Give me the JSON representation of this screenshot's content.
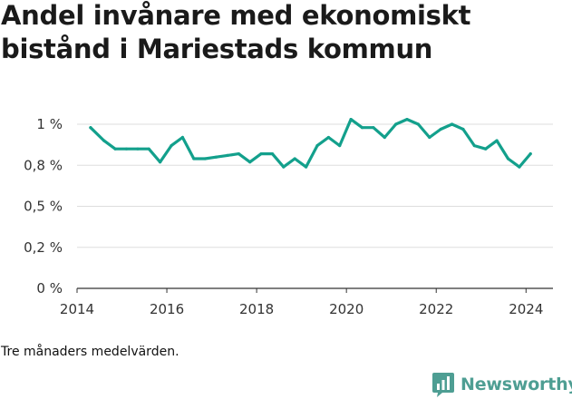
{
  "title_lines": [
    "Andel invånare med ekonomiskt",
    "bistånd i Mariestads kommun"
  ],
  "footnote": "Tre månaders medelvärden.",
  "brand": {
    "name": "Newsworthy",
    "icon": "bar-chart-logo-icon",
    "color": "#4e9e93"
  },
  "chart_data": {
    "type": "line",
    "title": "Andel invånare med ekonomiskt bistånd i Mariestads kommun",
    "xlabel": "",
    "ylabel": "",
    "grid": true,
    "line_color": "#13a08c",
    "xlim": [
      2014,
      2024.6
    ],
    "ylim": [
      0,
      1.05
    ],
    "x_ticks": [
      {
        "value": 2014,
        "label": "2014"
      },
      {
        "value": 2016,
        "label": "2016"
      },
      {
        "value": 2018,
        "label": "2018"
      },
      {
        "value": 2020,
        "label": "2020"
      },
      {
        "value": 2022,
        "label": "2022"
      },
      {
        "value": 2024,
        "label": "2024"
      }
    ],
    "y_ticks": [
      {
        "value": 0,
        "label": "0 %"
      },
      {
        "value": 0.25,
        "label": "0,2 %"
      },
      {
        "value": 0.5,
        "label": "0,5 %"
      },
      {
        "value": 0.75,
        "label": "0,8 %"
      },
      {
        "value": 1.0,
        "label": "1 %"
      }
    ],
    "series": [
      {
        "x": [
          2014.3,
          2014.6,
          2014.85,
          2015.1,
          2015.35,
          2015.6,
          2015.85,
          2016.1,
          2016.35,
          2016.6,
          2016.85,
          2017.1,
          2017.35,
          2017.6,
          2017.85,
          2018.1,
          2018.35,
          2018.6,
          2018.85,
          2019.1,
          2019.35,
          2019.6,
          2019.85,
          2020.1,
          2020.35,
          2020.6,
          2020.85,
          2021.1,
          2021.35,
          2021.6,
          2021.85,
          2022.1,
          2022.35,
          2022.6,
          2022.85,
          2023.1,
          2023.35,
          2023.6,
          2023.85,
          2024.1
        ],
        "y": [
          0.98,
          0.9,
          0.85,
          0.85,
          0.85,
          0.85,
          0.77,
          0.87,
          0.92,
          0.79,
          0.79,
          0.8,
          0.81,
          0.82,
          0.77,
          0.82,
          0.82,
          0.74,
          0.79,
          0.74,
          0.87,
          0.92,
          0.87,
          1.03,
          0.98,
          0.98,
          0.92,
          1.0,
          1.03,
          1.0,
          0.92,
          0.97,
          1.0,
          0.97,
          0.87,
          0.85,
          0.9,
          0.79,
          0.74,
          0.82
        ]
      }
    ]
  }
}
